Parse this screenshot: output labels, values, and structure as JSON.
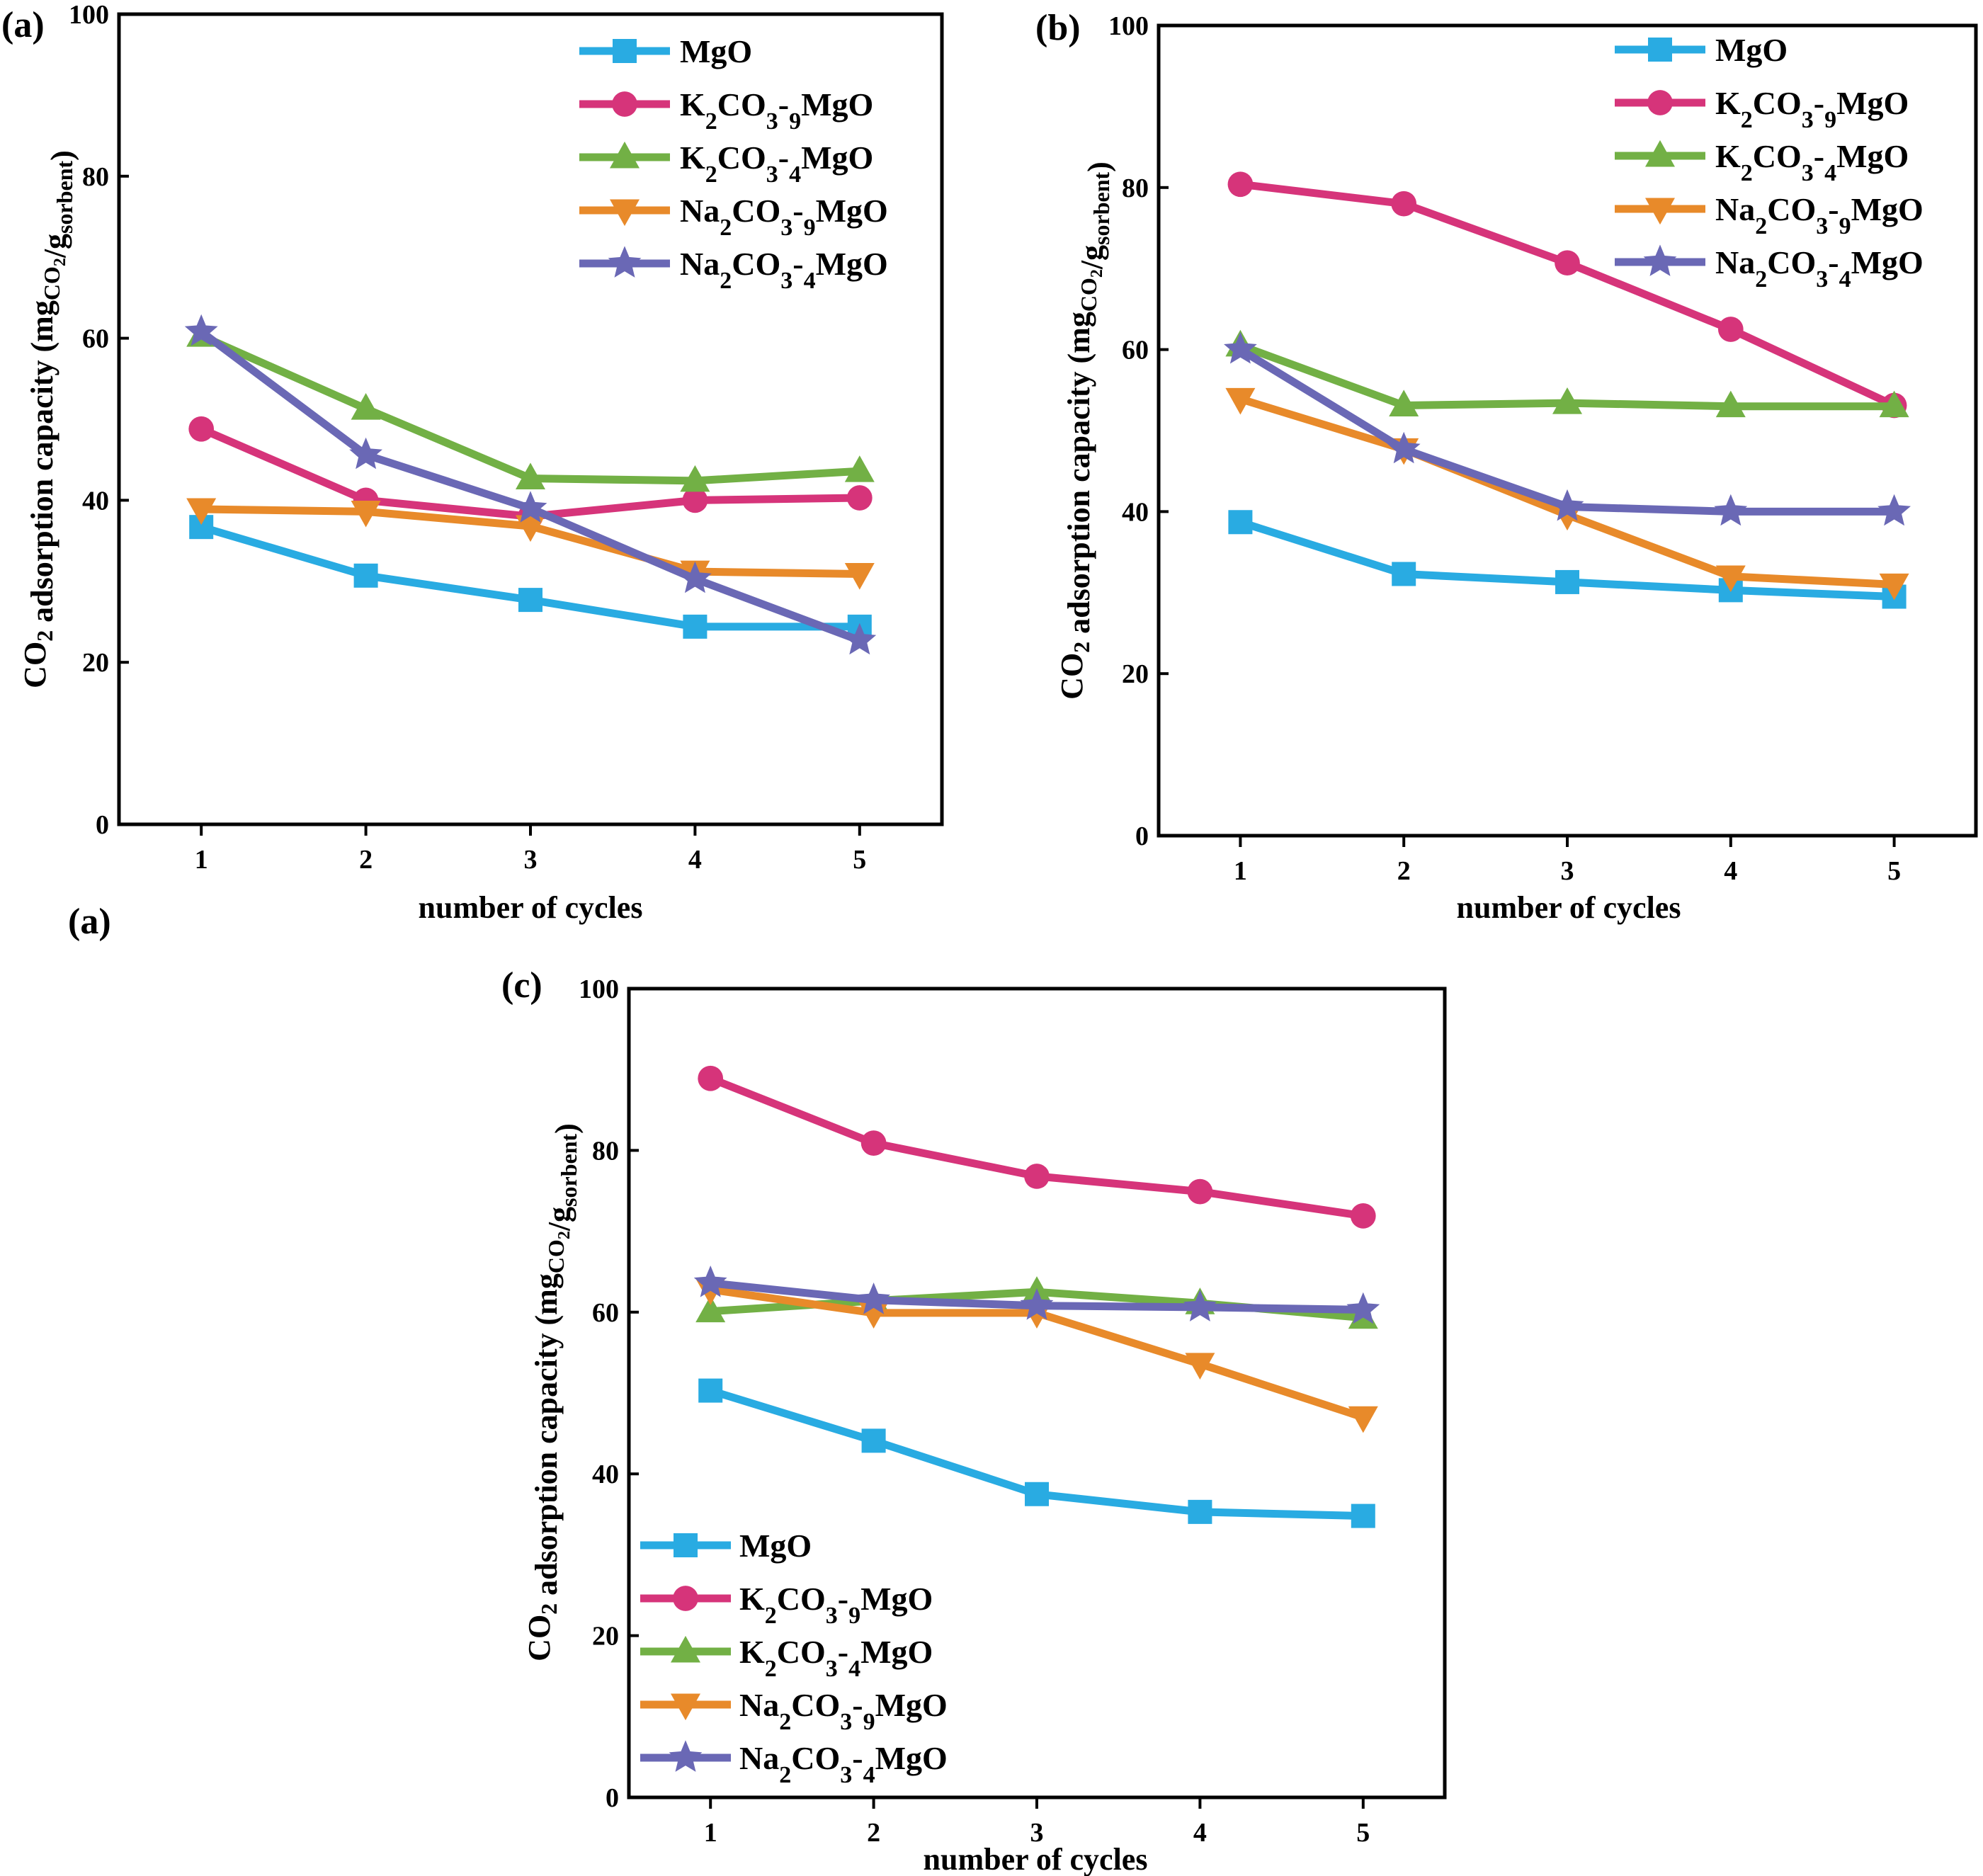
{
  "figure": {
    "stray_label": "(a)"
  },
  "chart_data": [
    {
      "type": "line",
      "panel_label": "(a)",
      "xlabel": "number of cycles",
      "ylabel": "CO2 adsorption capacity (mgCO2/gsorbent)",
      "x": [
        1,
        2,
        3,
        4,
        5
      ],
      "xlim": [
        0.5,
        5.5
      ],
      "ylim": [
        0,
        100
      ],
      "yticks": [
        0,
        20,
        40,
        60,
        80,
        100
      ],
      "legend_position": "top-right",
      "series": [
        {
          "name": "MgO",
          "color": "#29abe2",
          "marker": "square",
          "values": [
            36.7,
            30.7,
            27.7,
            24.4,
            24.4
          ]
        },
        {
          "name": "K2CO3-9MgO",
          "color": "#d6347a",
          "marker": "circle",
          "values": [
            48.8,
            40.0,
            38.0,
            40.0,
            40.3
          ]
        },
        {
          "name": "K2CO3-4MgO",
          "color": "#72b045",
          "marker": "triangle-up",
          "values": [
            60.3,
            51.3,
            42.7,
            42.4,
            43.6
          ]
        },
        {
          "name": "Na2CO3-9MgO",
          "color": "#e88a2a",
          "marker": "triangle-down",
          "values": [
            38.9,
            38.6,
            36.8,
            31.2,
            30.9
          ]
        },
        {
          "name": "Na2CO3-4MgO",
          "color": "#6a68b5",
          "marker": "star",
          "values": [
            60.8,
            45.6,
            39.0,
            30.3,
            22.7
          ]
        }
      ]
    },
    {
      "type": "line",
      "panel_label": "(b)",
      "xlabel": "number of cycles",
      "ylabel": "CO2 adsorption capacity (mgCO2/gsorbent)",
      "x": [
        1,
        2,
        3,
        4,
        5
      ],
      "xlim": [
        0.5,
        5.5
      ],
      "ylim": [
        0,
        100
      ],
      "yticks": [
        0,
        20,
        40,
        60,
        80,
        100
      ],
      "legend_position": "top-right",
      "series": [
        {
          "name": "MgO",
          "color": "#29abe2",
          "marker": "square",
          "values": [
            38.7,
            32.3,
            31.3,
            30.3,
            29.5
          ]
        },
        {
          "name": "K2CO3-9MgO",
          "color": "#d6347a",
          "marker": "circle",
          "values": [
            80.4,
            78.0,
            70.7,
            62.5,
            53.1
          ]
        },
        {
          "name": "K2CO3-4MgO",
          "color": "#72b045",
          "marker": "triangle-up",
          "values": [
            60.5,
            53.1,
            53.4,
            53.0,
            53.0
          ]
        },
        {
          "name": "Na2CO3-9MgO",
          "color": "#e88a2a",
          "marker": "triangle-down",
          "values": [
            53.9,
            47.7,
            39.6,
            32.0,
            31.0
          ]
        },
        {
          "name": "Na2CO3-4MgO",
          "color": "#6a68b5",
          "marker": "star",
          "values": [
            60.0,
            47.7,
            40.6,
            40.0,
            40.0
          ]
        }
      ]
    },
    {
      "type": "line",
      "panel_label": "(c)",
      "xlabel": "number of cycles",
      "ylabel": "CO2 adsorption capacity (mgCO2/gsorbent)",
      "x": [
        1,
        2,
        3,
        4,
        5
      ],
      "xlim": [
        0.5,
        5.5
      ],
      "ylim": [
        0,
        100
      ],
      "yticks": [
        0,
        20,
        40,
        60,
        80,
        100
      ],
      "legend_position": "bottom-left",
      "series": [
        {
          "name": "MgO",
          "color": "#29abe2",
          "marker": "square",
          "values": [
            50.3,
            44.1,
            37.5,
            35.3,
            34.8
          ]
        },
        {
          "name": "K2CO3-9MgO",
          "color": "#d6347a",
          "marker": "circle",
          "values": [
            88.9,
            80.9,
            76.8,
            74.9,
            71.9
          ]
        },
        {
          "name": "K2CO3-4MgO",
          "color": "#72b045",
          "marker": "triangle-up",
          "values": [
            60.1,
            61.4,
            62.5,
            61.1,
            59.3
          ]
        },
        {
          "name": "Na2CO3-9MgO",
          "color": "#e88a2a",
          "marker": "triangle-down",
          "values": [
            62.8,
            59.9,
            59.9,
            53.6,
            47.0
          ]
        },
        {
          "name": "Na2CO3-4MgO",
          "color": "#6a68b5",
          "marker": "star",
          "values": [
            63.6,
            61.5,
            60.8,
            60.6,
            60.3
          ]
        }
      ]
    }
  ]
}
